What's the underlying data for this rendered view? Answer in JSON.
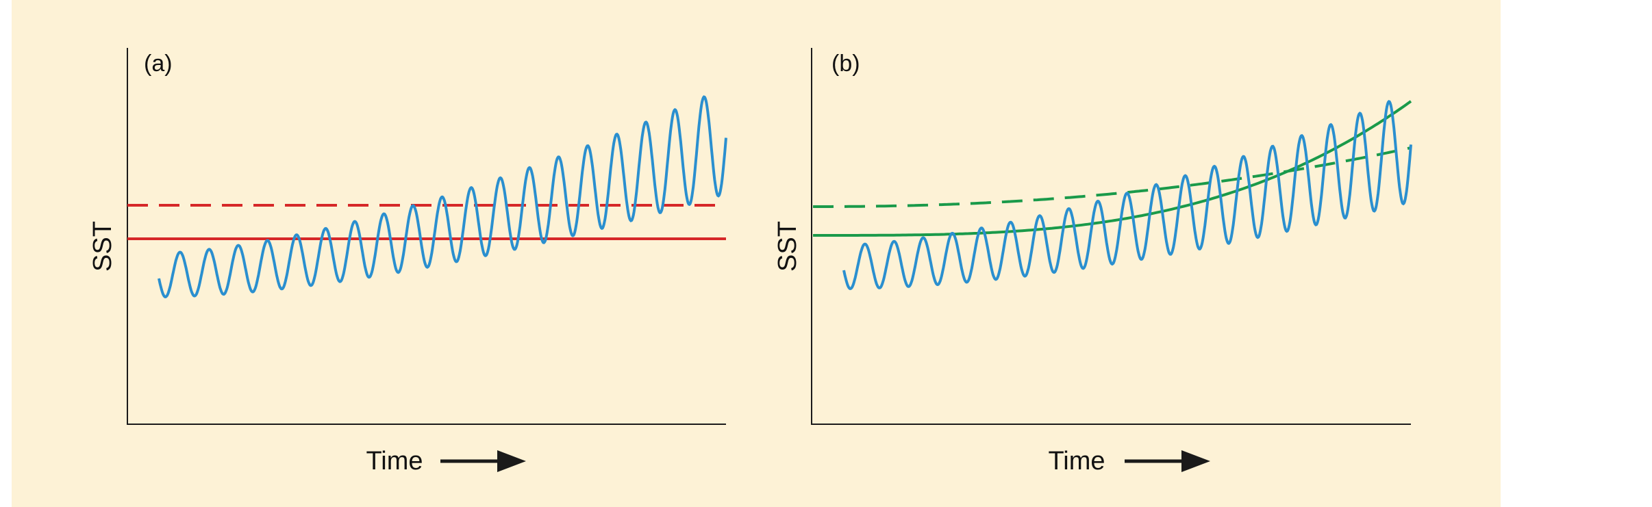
{
  "panels": [
    {
      "id": "a",
      "tag": "(a)",
      "ylabel": "SST",
      "xlabel": "Time",
      "reference_lines": [
        {
          "style": "solid",
          "color": "#d62828",
          "shape": "flat"
        },
        {
          "style": "dashed",
          "color": "#d62828",
          "shape": "flat"
        }
      ]
    },
    {
      "id": "b",
      "tag": "(b)",
      "ylabel": "SST",
      "xlabel": "Time",
      "reference_lines": [
        {
          "style": "solid",
          "color": "#1a9a4a",
          "shape": "rising-curve"
        },
        {
          "style": "dashed",
          "color": "#1a9a4a",
          "shape": "rising-curve"
        }
      ]
    }
  ],
  "colors": {
    "oscillation": "#2a8fcf",
    "axis": "#1a1a1a",
    "background": "#fdf2d6"
  },
  "icons": {
    "time_arrow": "right-arrow-icon"
  }
}
